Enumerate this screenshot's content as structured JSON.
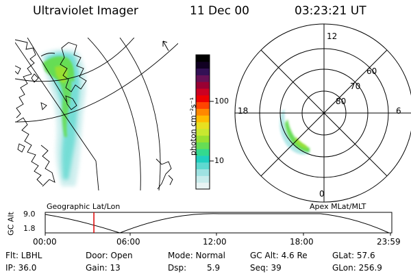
{
  "header": {
    "title": "Ultraviolet Imager",
    "date": "11 Dec 00",
    "time": "03:23:21 UT"
  },
  "left_panel": {
    "label": "Geographic Lat/Lon"
  },
  "right_panel": {
    "label": "Apex MLat/MLT",
    "mlt_labels": [
      "12",
      "18",
      "6",
      "0"
    ],
    "mlat_labels": [
      "60",
      "70",
      "80"
    ]
  },
  "colorbar": {
    "unit": "photon cm⁻²s⁻¹",
    "ticks": [
      "100",
      "10"
    ],
    "colors": [
      "#e8f4f4",
      "#c8ecec",
      "#9fe2e2",
      "#5fd9d0",
      "#20cfc0",
      "#33d98f",
      "#66dd55",
      "#99e030",
      "#c8e830",
      "#e8e020",
      "#ffbb00",
      "#ff8800",
      "#ff4400",
      "#ee0000",
      "#cc0022",
      "#990033",
      "#661155",
      "#331155",
      "#110022",
      "#000000"
    ]
  },
  "altitude_plot": {
    "axis_label": "GC Alt",
    "y_labels": [
      "9.0",
      "1.8"
    ],
    "x_labels": [
      "00:00",
      "06:00",
      "12:00",
      "18:00",
      "23:59"
    ],
    "current_time_fraction": 0.141,
    "marker_color": "#dd0000"
  },
  "status": {
    "flt": "Flt: LBHL",
    "ip": "IP: 36.0",
    "door": "Door: Open",
    "gain": "Gain: 13",
    "mode": "Mode: Normal",
    "dsp_label": "Dsp:",
    "dsp_value": "5.9",
    "gc_alt": "GC Alt: 4.6 Re",
    "seq": "Seq: 39",
    "glat": "GLat:  57.6",
    "glon": "GLon: 256.9"
  }
}
